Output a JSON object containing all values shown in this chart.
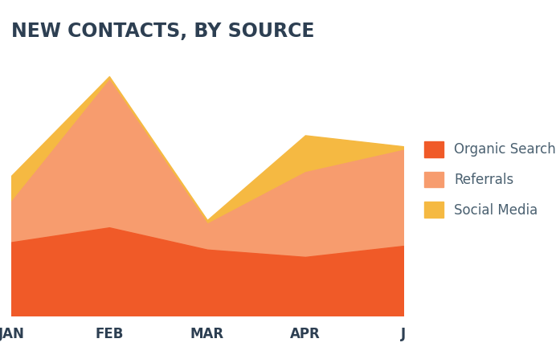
{
  "title": "NEW CONTACTS, BY SOURCE",
  "title_color": "#2d3f52",
  "title_fontsize": 17,
  "background_color": "#ffffff",
  "x_labels": [
    "JAN",
    "FEB",
    "MAR",
    "APR",
    "J"
  ],
  "x_values": [
    0,
    1,
    2,
    3,
    4
  ],
  "organic_search": [
    100,
    120,
    90,
    80,
    95
  ],
  "referrals": [
    55,
    200,
    35,
    115,
    130
  ],
  "social_media": [
    35,
    5,
    5,
    50,
    5
  ],
  "color_organic": "#f05a28",
  "color_referrals": "#f79c6e",
  "color_social": "#f5b942",
  "legend_text_color": "#4a6070",
  "legend_fontsize": 12,
  "axis_label_color": "#2d3f52",
  "axis_label_fontsize": 12,
  "xlim": [
    0,
    4
  ],
  "ylim": [
    0,
    370
  ]
}
